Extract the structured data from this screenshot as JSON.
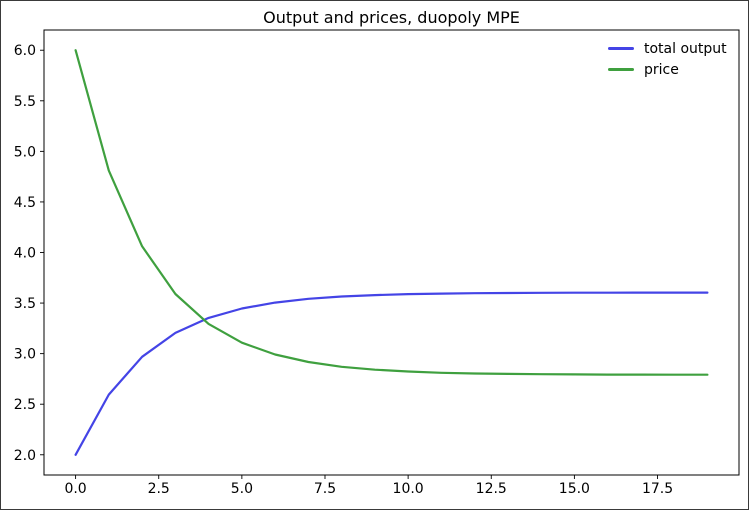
{
  "chart_data": {
    "type": "line",
    "title": "Output and prices, duopoly MPE",
    "xlabel": "",
    "ylabel": "",
    "grid": false,
    "legend_position": "upper right",
    "legend_frame": false,
    "xlim": [
      -0.95,
      19.95
    ],
    "ylim": [
      1.8,
      6.2
    ],
    "xticks": [
      0.0,
      2.5,
      5.0,
      7.5,
      10.0,
      12.5,
      15.0,
      17.5
    ],
    "xtick_labels": [
      "0.0",
      "2.5",
      "5.0",
      "7.5",
      "10.0",
      "12.5",
      "15.0",
      "17.5"
    ],
    "yticks": [
      2.0,
      2.5,
      3.0,
      3.5,
      4.0,
      4.5,
      5.0,
      5.5,
      6.0
    ],
    "ytick_labels": [
      "2.0",
      "2.5",
      "3.0",
      "3.5",
      "4.0",
      "4.5",
      "5.0",
      "5.5",
      "6.0"
    ],
    "x": [
      0,
      1,
      2,
      3,
      4,
      5,
      6,
      7,
      8,
      9,
      10,
      11,
      12,
      13,
      14,
      15,
      16,
      17,
      18,
      19
    ],
    "series": [
      {
        "name": "total output",
        "color": "#4444e6",
        "values": [
          2.0,
          2.595,
          2.969,
          3.205,
          3.353,
          3.446,
          3.505,
          3.542,
          3.565,
          3.579,
          3.589,
          3.594,
          3.598,
          3.6,
          3.602,
          3.603,
          3.603,
          3.604,
          3.604,
          3.604
        ]
      },
      {
        "name": "price",
        "color": "#3fa03f",
        "values": [
          6.0,
          4.81,
          4.061,
          3.59,
          3.294,
          3.108,
          2.991,
          2.917,
          2.87,
          2.841,
          2.823,
          2.811,
          2.804,
          2.8,
          2.797,
          2.795,
          2.793,
          2.793,
          2.792,
          2.792
        ]
      }
    ],
    "line_width": 2,
    "axis_color": "#000000"
  }
}
